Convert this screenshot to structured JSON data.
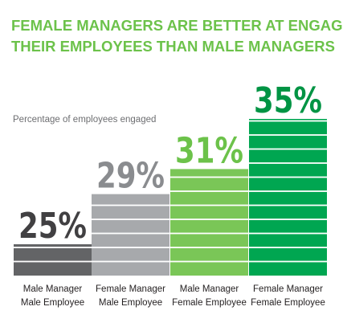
{
  "colors": {
    "title": "#6cc24a",
    "subtitle": "#6d6e71",
    "label": "#231f20",
    "stripe": "#ffffff"
  },
  "chart_data": {
    "type": "bar",
    "title": [
      "FEMALE MANAGERS ARE BETTER AT ENGAGING",
      "THEIR EMPLOYEES THAN MALE MANAGERS"
    ],
    "ylabel": "Percentage of employees engaged",
    "xlabel": "",
    "ylim": [
      22.5,
      35
    ],
    "grid": false,
    "legend": "none",
    "unit": "%",
    "categories": [
      [
        "Male Manager",
        "Male Employee"
      ],
      [
        "Female Manager",
        "Male Employee"
      ],
      [
        "Male Manager",
        "Female Employee"
      ],
      [
        "Female Manager",
        "Female Employee"
      ]
    ],
    "values": [
      25,
      29,
      31,
      35
    ],
    "value_labels": [
      "25%",
      "29%",
      "31%",
      "35%"
    ],
    "bar_colors": [
      "#636466",
      "#a7a9ac",
      "#7ac657",
      "#00a651"
    ],
    "label_colors": [
      "#414042",
      "#8a8c8f",
      "#6cc24a",
      "#009444"
    ]
  }
}
